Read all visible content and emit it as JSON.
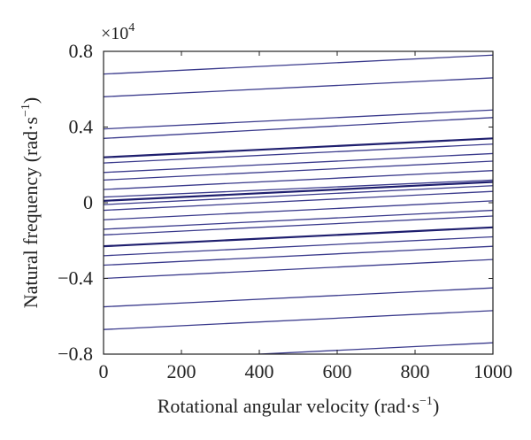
{
  "chart_data": {
    "type": "line",
    "xlabel_main": "Rotational angular velocity (rad·s",
    "xlabel_sup": "−1",
    "xlabel_close": ")",
    "ylabel_main": "Natural frequency (rad·s",
    "ylabel_sup": "−1",
    "ylabel_close": ")",
    "y_multiplier_base": "×10",
    "y_multiplier_exp": "4",
    "xlim": [
      0,
      1000
    ],
    "ylim": [
      -0.8,
      0.8
    ],
    "x_ticks": [
      0,
      200,
      400,
      600,
      800,
      1000
    ],
    "x_tick_labels": [
      "0",
      "200",
      "400",
      "600",
      "800",
      "1000"
    ],
    "y_ticks": [
      0.8,
      0.4,
      0,
      -0.4,
      -0.8
    ],
    "y_tick_labels": [
      "0.8",
      "0.4",
      "0",
      "−0.4",
      "−0.8"
    ],
    "grid": false,
    "line_color": "#3a3a8c",
    "series": [
      {
        "values": [
          0.68,
          0.78
        ]
      },
      {
        "values": [
          0.56,
          0.66
        ]
      },
      {
        "values": [
          0.39,
          0.49
        ]
      },
      {
        "values": [
          0.34,
          0.45
        ]
      },
      {
        "values": [
          0.24,
          0.34
        ],
        "bold": true
      },
      {
        "values": [
          0.21,
          0.31
        ]
      },
      {
        "values": [
          0.16,
          0.26
        ]
      },
      {
        "values": [
          0.12,
          0.22
        ]
      },
      {
        "values": [
          0.07,
          0.17
        ]
      },
      {
        "values": [
          0.03,
          0.12
        ]
      },
      {
        "values": [
          0.01,
          0.11
        ],
        "bold": true
      },
      {
        "values": [
          -0.01,
          0.09
        ]
      },
      {
        "values": [
          -0.04,
          0.06
        ]
      },
      {
        "values": [
          -0.09,
          0.01
        ]
      },
      {
        "values": [
          -0.14,
          -0.04
        ]
      },
      {
        "values": [
          -0.17,
          -0.07
        ]
      },
      {
        "values": [
          -0.23,
          -0.13
        ],
        "bold": true
      },
      {
        "values": [
          -0.28,
          -0.18
        ]
      },
      {
        "values": [
          -0.33,
          -0.23
        ]
      },
      {
        "values": [
          -0.4,
          -0.3
        ]
      },
      {
        "values": [
          -0.55,
          -0.45
        ]
      },
      {
        "values": [
          -0.67,
          -0.57
        ]
      },
      {
        "values": [
          -0.84,
          -0.74
        ]
      }
    ]
  }
}
